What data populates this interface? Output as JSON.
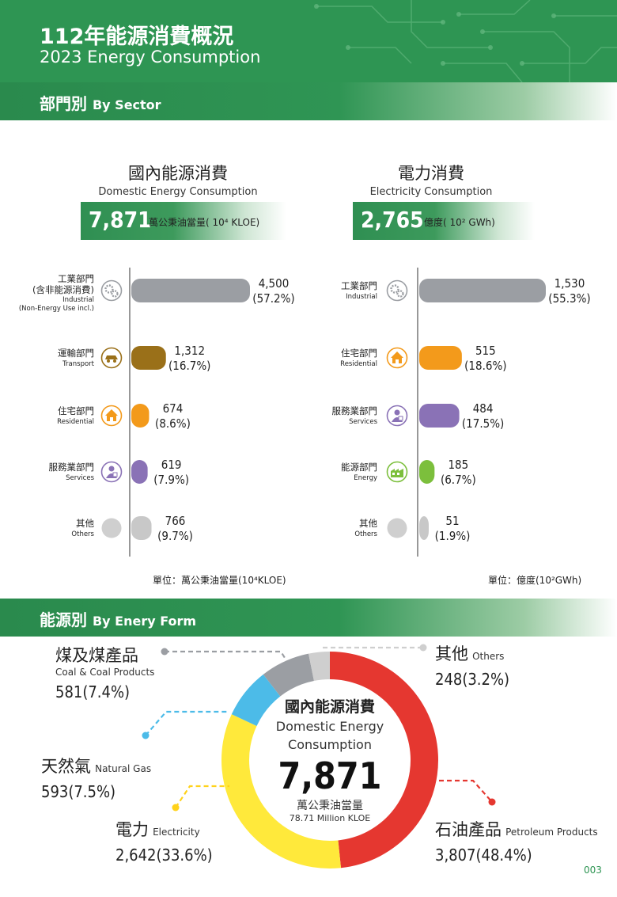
{
  "header": {
    "title_zh": "112年能源消費概況",
    "title_en": "2023 Energy Consumption"
  },
  "section_sector": {
    "zh": "部門別",
    "en": "By Sector"
  },
  "section_form": {
    "zh": "能源別",
    "en": "By Enery Form"
  },
  "domestic": {
    "title_zh": "國內能源消費",
    "title_en": "Domestic Energy Consumption",
    "total": "7,871",
    "unit": "萬公秉油當量( 10⁴ KLOE)",
    "footnote": "單位：萬公秉油當量(10⁴KLOE)"
  },
  "electricity": {
    "title_zh": "電力消費",
    "title_en": "Electricity Consumption",
    "total": "2,765",
    "unit": "億度( 10² GWh)",
    "footnote": "單位：億度(10²GWh)"
  },
  "colors": {
    "green": "#2e9553",
    "industrial": "#9b9ea3",
    "transport": "#9a7019",
    "residential": "#f39a1b",
    "services": "#8a72b6",
    "energy": "#7cbf3c",
    "others": "#c8c8c8",
    "coal": "#9b9ea3",
    "gas": "#4cbbe8",
    "electricity_form": "#ffe93b",
    "petroleum": "#e53730",
    "others_form": "#cfcfcf"
  },
  "chart_data": [
    {
      "type": "bar",
      "orientation": "horizontal",
      "title": "國內能源消費 Domestic Energy Consumption",
      "unit": "萬公秉油當量(10⁴KLOE)",
      "xlim": [
        0,
        4500
      ],
      "categories": [
        {
          "zh": "工業部門",
          "zh2": "(含非能源消費)",
          "en": "Industrial",
          "en2": "(Non-Energy Use incl.)",
          "icon": "gears-icon",
          "color": "industrial"
        },
        {
          "zh": "運輸部門",
          "en": "Transport",
          "icon": "car-icon",
          "color": "transport"
        },
        {
          "zh": "住宅部門",
          "en": "Residential",
          "icon": "house-icon",
          "color": "residential"
        },
        {
          "zh": "服務業部門",
          "en": "Services",
          "icon": "service-person-icon",
          "color": "services"
        },
        {
          "zh": "其他",
          "en": "Others",
          "icon": "others-circle-icon",
          "color": "others"
        }
      ],
      "values": [
        4500,
        1312,
        674,
        619,
        766
      ],
      "value_labels": [
        "4,500",
        "1,312",
        "674",
        "619",
        "766"
      ],
      "percent_labels": [
        "(57.2%)",
        "(16.7%)",
        "(8.6%)",
        "(7.9%)",
        "(9.7%)"
      ]
    },
    {
      "type": "bar",
      "orientation": "horizontal",
      "title": "電力消費 Electricity Consumption",
      "unit": "億度(10²GWh)",
      "xlim": [
        0,
        1530
      ],
      "categories": [
        {
          "zh": "工業部門",
          "en": "Industrial",
          "icon": "gears-icon",
          "color": "industrial"
        },
        {
          "zh": "住宅部門",
          "en": "Residential",
          "icon": "house-icon",
          "color": "residential"
        },
        {
          "zh": "服務業部門",
          "en": "Services",
          "icon": "service-person-icon",
          "color": "services"
        },
        {
          "zh": "能源部門",
          "en": "Energy",
          "icon": "factory-icon",
          "color": "energy"
        },
        {
          "zh": "其他",
          "en": "Others",
          "icon": "others-circle-icon",
          "color": "others"
        }
      ],
      "values": [
        1530,
        515,
        484,
        185,
        51
      ],
      "value_labels": [
        "1,530",
        "515",
        "484",
        "185",
        "51"
      ],
      "percent_labels": [
        "(55.3%)",
        "(18.6%)",
        "(17.5%)",
        "(6.7%)",
        "(1.9%)"
      ]
    },
    {
      "type": "pie",
      "donut": true,
      "center": {
        "zh": "國內能源消費",
        "en1": "Domestic Energy",
        "en2": "Consumption",
        "total": "7,871",
        "unit": "萬公秉油當量",
        "unit_en": "78.71 Million KLOE"
      },
      "slices": [
        {
          "zh": "石油產品",
          "en": "Petroleum Products",
          "value": 3807,
          "label": "3,807(48.4%)",
          "color": "petroleum"
        },
        {
          "zh": "電力",
          "en": "Electricity",
          "value": 2642,
          "label": "2,642(33.6%)",
          "color": "electricity_form"
        },
        {
          "zh": "天然氣",
          "en": "Natural Gas",
          "value": 593,
          "label": "593(7.5%)",
          "color": "gas"
        },
        {
          "zh": "煤及煤產品",
          "en": "Coal & Coal Products",
          "value": 581,
          "label": "581(7.4%)",
          "color": "coal"
        },
        {
          "zh": "其他",
          "en": "Others",
          "value": 248,
          "label": "248(3.2%)",
          "color": "others_form"
        }
      ]
    }
  ],
  "page_number": "003"
}
